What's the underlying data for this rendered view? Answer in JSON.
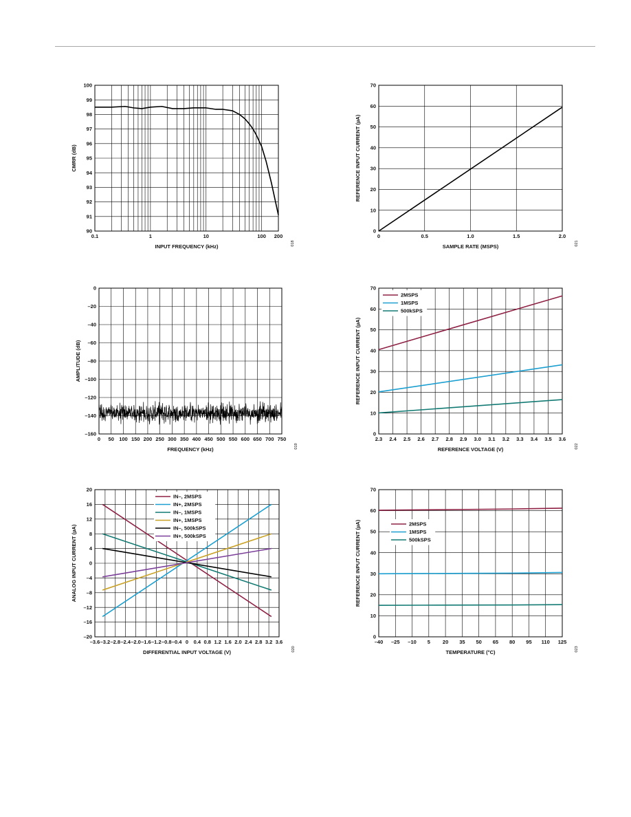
{
  "chart_data": [
    {
      "id": "cmrr",
      "type": "line",
      "xscale": "log",
      "xlim": [
        0.1,
        200
      ],
      "ylim": [
        90,
        100
      ],
      "xticks": [
        0.1,
        1,
        10,
        100,
        200
      ],
      "xtick_labels": [
        "0.1",
        "1",
        "10",
        "100",
        "200"
      ],
      "yticks": [
        90,
        91,
        92,
        93,
        94,
        95,
        96,
        97,
        98,
        99,
        100
      ],
      "ytick_labels": [
        "90",
        "91",
        "92",
        "93",
        "94",
        "95",
        "96",
        "97",
        "98",
        "99",
        "100"
      ],
      "xgrid": [
        0.2,
        0.3,
        0.4,
        0.5,
        0.6,
        0.7,
        0.8,
        0.9,
        2,
        3,
        4,
        5,
        6,
        7,
        8,
        9,
        20,
        30,
        40,
        50,
        60,
        70,
        80,
        90
      ],
      "xlabel": "INPUT FREQUENCY (kHz)",
      "ylabel": "CMRR (dB)",
      "figure_number": "018",
      "grid": true,
      "series": [
        {
          "color": "#000000",
          "x": [
            0.1,
            0.2,
            0.35,
            0.5,
            0.7,
            1,
            1.6,
            2.5,
            4,
            6,
            10,
            15,
            20,
            30,
            40,
            50,
            60,
            70,
            80,
            100,
            120,
            150,
            180,
            200
          ],
          "y": [
            98.5,
            98.5,
            98.55,
            98.45,
            98.4,
            98.5,
            98.55,
            98.4,
            98.4,
            98.45,
            98.45,
            98.35,
            98.35,
            98.25,
            98.0,
            97.7,
            97.35,
            97.0,
            96.6,
            95.8,
            94.8,
            93.3,
            91.9,
            91.1
          ]
        }
      ]
    },
    {
      "id": "ref-vs-rate",
      "type": "line",
      "xlim": [
        0,
        2
      ],
      "ylim": [
        0,
        70
      ],
      "xticks": [
        0,
        0.5,
        1,
        1.5,
        2
      ],
      "xtick_labels": [
        "0",
        "0.5",
        "1.0",
        "1.5",
        "2.0"
      ],
      "yticks": [
        0,
        10,
        20,
        30,
        40,
        50,
        60,
        70
      ],
      "ytick_labels": [
        "0",
        "10",
        "20",
        "30",
        "40",
        "50",
        "60",
        "70"
      ],
      "xgrid": [
        0,
        0.5,
        1,
        1.5,
        2
      ],
      "xlabel": "SAMPLE RATE (MSPS)",
      "ylabel": "REFERENCE INPUT CURRENT (µA)",
      "figure_number": "021",
      "grid": true,
      "series": [
        {
          "color": "#000000",
          "x": [
            0,
            2
          ],
          "y": [
            0,
            59.5
          ]
        }
      ]
    },
    {
      "id": "fft",
      "type": "line",
      "noise": true,
      "xlim": [
        0,
        750
      ],
      "ylim": [
        -160,
        0
      ],
      "xticks": [
        0,
        50,
        100,
        150,
        200,
        250,
        300,
        350,
        400,
        450,
        500,
        550,
        600,
        650,
        700,
        750
      ],
      "xtick_labels": [
        "0",
        "50",
        "100",
        "150",
        "200",
        "250",
        "300",
        "350",
        "400",
        "450",
        "500",
        "550",
        "600",
        "650",
        "700",
        "750"
      ],
      "yticks": [
        -160,
        -140,
        -120,
        -100,
        -80,
        -60,
        -40,
        -20,
        0
      ],
      "ytick_labels": [
        "–160",
        "–140",
        "–120",
        "–100",
        "–80",
        "–60",
        "–40",
        "–20",
        "0"
      ],
      "xgrid": [
        0,
        50,
        100,
        150,
        200,
        250,
        300,
        350,
        400,
        450,
        500,
        550,
        600,
        650,
        700,
        750
      ],
      "xlabel": "FREQUENCY (kHz)",
      "ylabel": "AMPLITUDE (dB)",
      "figure_number": "019",
      "grid": true,
      "noise_floor_db": -137,
      "noise_range_db": [
        -150,
        -124
      ],
      "series": [
        {
          "color": "#000000",
          "x": [
            0,
            750
          ],
          "y": [
            -137,
            -137
          ]
        }
      ]
    },
    {
      "id": "ref-vs-vref",
      "type": "line",
      "xlim": [
        2.3,
        3.6
      ],
      "ylim": [
        0,
        70
      ],
      "xticks": [
        2.3,
        2.4,
        2.5,
        2.6,
        2.7,
        2.8,
        2.9,
        3.0,
        3.1,
        3.2,
        3.3,
        3.4,
        3.5,
        3.6
      ],
      "xtick_labels": [
        "2.3",
        "2.4",
        "2.5",
        "2.6",
        "2.7",
        "2.8",
        "2.9",
        "3.0",
        "3.1",
        "3.2",
        "3.3",
        "3.4",
        "3.5",
        "3.6"
      ],
      "yticks": [
        0,
        10,
        20,
        30,
        40,
        50,
        60,
        70
      ],
      "ytick_labels": [
        "0",
        "10",
        "20",
        "30",
        "40",
        "50",
        "60",
        "70"
      ],
      "xgrid": [
        2.3,
        2.4,
        2.5,
        2.6,
        2.7,
        2.8,
        2.9,
        3.0,
        3.1,
        3.2,
        3.3,
        3.4,
        3.5,
        3.6
      ],
      "xlabel": "REFERENCE VOLTAGE (V)",
      "ylabel": "REFERENCE INPUT CURRENT (µA)",
      "figure_number": "022",
      "grid": true,
      "legend_position": "top-left",
      "series": [
        {
          "name": "2MSPS",
          "color": "#8e2043",
          "x": [
            2.3,
            3.6
          ],
          "y": [
            40.5,
            66.3
          ]
        },
        {
          "name": "1MSPS",
          "color": "#1a9fd0",
          "x": [
            2.3,
            3.6
          ],
          "y": [
            20.2,
            33.2
          ]
        },
        {
          "name": "500kSPS",
          "color": "#127a73",
          "x": [
            2.3,
            3.6
          ],
          "y": [
            10.1,
            16.5
          ]
        }
      ]
    },
    {
      "id": "analog-input",
      "type": "line",
      "xlim": [
        -3.6,
        3.6
      ],
      "ylim": [
        -20,
        20
      ],
      "xticks": [
        -3.6,
        -3.2,
        -2.8,
        -2.4,
        -2.0,
        -1.6,
        -1.2,
        -0.8,
        -0.4,
        0,
        0.4,
        0.8,
        1.2,
        1.6,
        2.0,
        2.4,
        2.8,
        3.2,
        3.6
      ],
      "xtick_labels": [
        "–3.6",
        "–3.2",
        "–2.8",
        "–2.4",
        "–2.0",
        "–1.6",
        "–1.2",
        "–0.8",
        "–0.4",
        "0",
        "0.4",
        "0.8",
        "1.2",
        "1.6",
        "2.0",
        "2.4",
        "2.8",
        "3.2",
        "3.6"
      ],
      "yticks": [
        -20,
        -16,
        -12,
        -8,
        -4,
        0,
        4,
        8,
        12,
        16,
        20
      ],
      "ytick_labels": [
        "–20",
        "–16",
        "–12",
        "–8",
        "–4",
        "0",
        "4",
        "8",
        "12",
        "16",
        "20"
      ],
      "xgrid": [
        -3.6,
        -3.2,
        -2.8,
        -2.4,
        -2.0,
        -1.6,
        -1.2,
        -0.8,
        -0.4,
        0,
        0.4,
        0.8,
        1.2,
        1.6,
        2.0,
        2.4,
        2.8,
        3.2,
        3.6
      ],
      "xlabel": "DIFFERENTIAL INPUT VOLTAGE (V)",
      "ylabel": "ANALOG INPUT CURRENT (µA)",
      "figure_number": "020",
      "grid": true,
      "legend_position": "top-center",
      "series": [
        {
          "name": "IN–, 2MSPS",
          "color": "#8e2043",
          "x": [
            -3.3,
            3.3
          ],
          "y": [
            16,
            -14.5
          ]
        },
        {
          "name": "IN+, 2MSPS",
          "color": "#1a9fd0",
          "x": [
            -3.3,
            3.3
          ],
          "y": [
            -14.5,
            16
          ]
        },
        {
          "name": "IN–, 1MSPS",
          "color": "#127a73",
          "x": [
            -3.3,
            3.3
          ],
          "y": [
            8,
            -7.3
          ]
        },
        {
          "name": "IN+, 1MSPS",
          "color": "#c9a227",
          "x": [
            -3.3,
            3.3
          ],
          "y": [
            -7.3,
            8
          ]
        },
        {
          "name": "IN–, 500kSPS",
          "color": "#000000",
          "x": [
            -3.3,
            3.3
          ],
          "y": [
            4,
            -3.7
          ]
        },
        {
          "name": "IN+, 500kSPS",
          "color": "#7b3f99",
          "x": [
            -3.3,
            3.3
          ],
          "y": [
            -3.7,
            4
          ]
        }
      ]
    },
    {
      "id": "ref-vs-temp",
      "type": "line",
      "xlim": [
        -40,
        125
      ],
      "ylim": [
        0,
        70
      ],
      "xticks": [
        -40,
        -25,
        -10,
        5,
        20,
        35,
        50,
        65,
        80,
        95,
        110,
        125
      ],
      "xtick_labels": [
        "–40",
        "–25",
        "–10",
        "5",
        "20",
        "35",
        "50",
        "65",
        "80",
        "95",
        "110",
        "125"
      ],
      "yticks": [
        0,
        10,
        20,
        30,
        40,
        50,
        60,
        70
      ],
      "ytick_labels": [
        "0",
        "10",
        "20",
        "30",
        "40",
        "50",
        "60",
        "70"
      ],
      "xgrid": [
        -40,
        -25,
        -10,
        5,
        20,
        35,
        50,
        65,
        80,
        95,
        110,
        125
      ],
      "xlabel": "TEMPERATURE (°C)",
      "ylabel": "REFERENCE INPUT CURRENT (µA)",
      "figure_number": "023",
      "grid": true,
      "legend_position": "center-left",
      "series": [
        {
          "name": "2MSPS",
          "color": "#8e2043",
          "x": [
            -40,
            0,
            40,
            80,
            125
          ],
          "y": [
            60.2,
            60.4,
            60.6,
            60.8,
            61.2
          ]
        },
        {
          "name": "1MSPS",
          "color": "#1a9fd0",
          "x": [
            -40,
            0,
            40,
            80,
            125
          ],
          "y": [
            30.0,
            30.1,
            30.2,
            30.3,
            30.6
          ]
        },
        {
          "name": "500kSPS",
          "color": "#127a73",
          "x": [
            -40,
            0,
            40,
            80,
            125
          ],
          "y": [
            15.0,
            15.05,
            15.1,
            15.15,
            15.3
          ]
        }
      ]
    }
  ]
}
